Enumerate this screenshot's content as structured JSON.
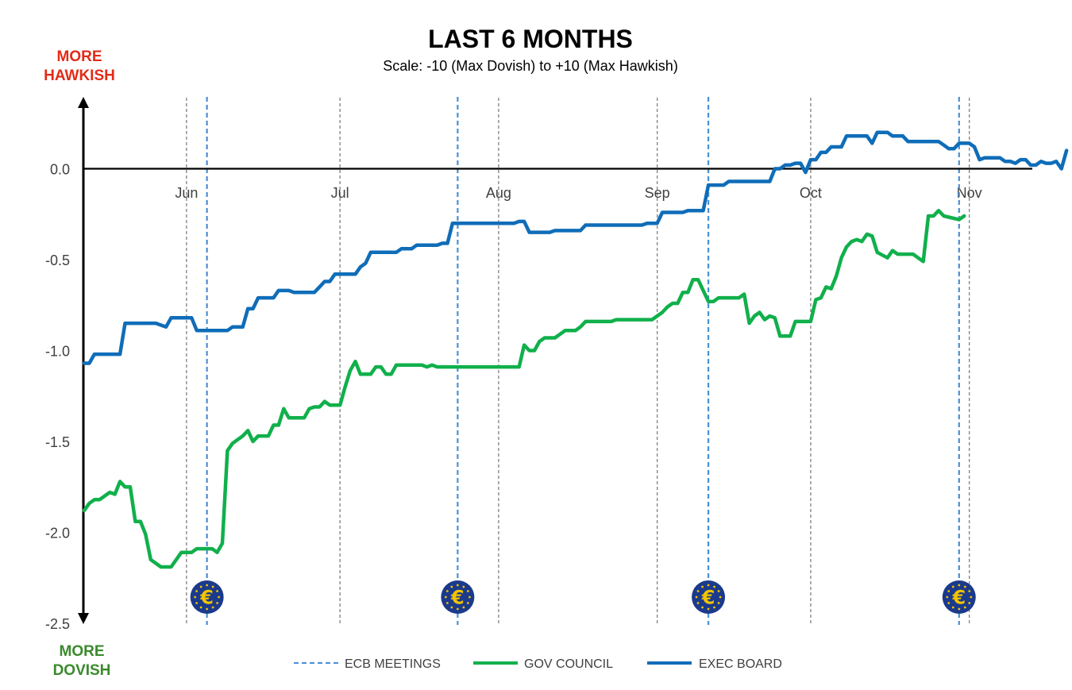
{
  "chart_data": {
    "type": "line",
    "title": "LAST 6 MONTHS",
    "subtitle": "Scale: -10 (Max Dovish)  to +10 (Max Hawkish)",
    "top_label": [
      "MORE",
      "HAWKISH"
    ],
    "bottom_label": [
      "MORE",
      "DOVISH"
    ],
    "ylim": [
      -2.5,
      0.4
    ],
    "yticks": [
      "0.0",
      "-0.5",
      "-1.0",
      "-1.5",
      "-2.0",
      "-2.5"
    ],
    "ytick_values": [
      0.0,
      -0.5,
      -1.0,
      -1.5,
      -2.0,
      -2.5
    ],
    "xlim": [
      "2025-05-12",
      "2025-11-13"
    ],
    "month_ticks": [
      {
        "label": "Jun",
        "date": "2025-06-01"
      },
      {
        "label": "Jul",
        "date": "2025-07-01"
      },
      {
        "label": "Aug",
        "date": "2025-08-01"
      },
      {
        "label": "Sep",
        "date": "2025-09-01"
      },
      {
        "label": "Oct",
        "date": "2025-10-01"
      },
      {
        "label": "Nov",
        "date": "2025-11-01"
      }
    ],
    "ecb_meetings": [
      "2025-06-05",
      "2025-07-24",
      "2025-09-11",
      "2025-10-30"
    ],
    "zero_line": true,
    "legend": "bottom-center",
    "legend_items": [
      "ECB MEETINGS",
      "GOV COUNCIL",
      "EXEC BOARD"
    ],
    "colors": {
      "exec_board": "#0F6DB8",
      "gov_council": "#10B04B",
      "ecb_meetings": "#4A8FD6",
      "month_lines": "#808080",
      "hawkish": "#E32B17",
      "dovish": "#3A8A2C",
      "euro_disc": "#1B3A8C",
      "euro_symbol": "#F2C300"
    },
    "series": [
      {
        "name": "EXEC BOARD",
        "points": [
          [
            "2025-05-12",
            -1.07
          ],
          [
            "2025-05-13",
            -1.07
          ],
          [
            "2025-05-14",
            -1.02
          ],
          [
            "2025-05-19",
            -1.02
          ],
          [
            "2025-05-20",
            -0.85
          ],
          [
            "2025-05-26",
            -0.85
          ],
          [
            "2025-05-28",
            -0.87
          ],
          [
            "2025-05-29",
            -0.82
          ],
          [
            "2025-06-02",
            -0.82
          ],
          [
            "2025-06-03",
            -0.89
          ],
          [
            "2025-06-09",
            -0.89
          ],
          [
            "2025-06-10",
            -0.87
          ],
          [
            "2025-06-12",
            -0.87
          ],
          [
            "2025-06-13",
            -0.77
          ],
          [
            "2025-06-14",
            -0.77
          ],
          [
            "2025-06-15",
            -0.71
          ],
          [
            "2025-06-18",
            -0.71
          ],
          [
            "2025-06-19",
            -0.67
          ],
          [
            "2025-06-21",
            -0.67
          ],
          [
            "2025-06-22",
            -0.68
          ],
          [
            "2025-06-26",
            -0.68
          ],
          [
            "2025-06-27",
            -0.65
          ],
          [
            "2025-06-28",
            -0.62
          ],
          [
            "2025-06-29",
            -0.62
          ],
          [
            "2025-06-30",
            -0.58
          ],
          [
            "2025-07-04",
            -0.58
          ],
          [
            "2025-07-05",
            -0.54
          ],
          [
            "2025-07-06",
            -0.52
          ],
          [
            "2025-07-07",
            -0.46
          ],
          [
            "2025-07-12",
            -0.46
          ],
          [
            "2025-07-13",
            -0.44
          ],
          [
            "2025-07-15",
            -0.44
          ],
          [
            "2025-07-16",
            -0.42
          ],
          [
            "2025-07-20",
            -0.42
          ],
          [
            "2025-07-21",
            -0.41
          ],
          [
            "2025-07-22",
            -0.41
          ],
          [
            "2025-07-23",
            -0.3
          ],
          [
            "2025-08-04",
            -0.3
          ],
          [
            "2025-08-05",
            -0.29
          ],
          [
            "2025-08-06",
            -0.29
          ],
          [
            "2025-08-07",
            -0.35
          ],
          [
            "2025-08-11",
            -0.35
          ],
          [
            "2025-08-12",
            -0.34
          ],
          [
            "2025-08-17",
            -0.34
          ],
          [
            "2025-08-18",
            -0.31
          ],
          [
            "2025-08-29",
            -0.31
          ],
          [
            "2025-08-30",
            -0.3
          ],
          [
            "2025-09-01",
            -0.3
          ],
          [
            "2025-09-02",
            -0.24
          ],
          [
            "2025-09-06",
            -0.24
          ],
          [
            "2025-09-07",
            -0.23
          ],
          [
            "2025-09-10",
            -0.23
          ],
          [
            "2025-09-11",
            -0.09
          ],
          [
            "2025-09-14",
            -0.09
          ],
          [
            "2025-09-15",
            -0.07
          ],
          [
            "2025-09-23",
            -0.07
          ],
          [
            "2025-09-24",
            0.0
          ],
          [
            "2025-09-25",
            0.0
          ],
          [
            "2025-09-26",
            0.02
          ],
          [
            "2025-09-27",
            0.02
          ],
          [
            "2025-09-28",
            0.03
          ],
          [
            "2025-09-29",
            0.03
          ],
          [
            "2025-09-30",
            -0.02
          ],
          [
            "2025-10-01",
            0.05
          ],
          [
            "2025-10-02",
            0.05
          ],
          [
            "2025-10-03",
            0.09
          ],
          [
            "2025-10-04",
            0.09
          ],
          [
            "2025-10-05",
            0.12
          ],
          [
            "2025-10-07",
            0.12
          ],
          [
            "2025-10-08",
            0.18
          ],
          [
            "2025-10-12",
            0.18
          ],
          [
            "2025-10-13",
            0.14
          ],
          [
            "2025-10-14",
            0.2
          ],
          [
            "2025-10-16",
            0.2
          ],
          [
            "2025-10-17",
            0.18
          ],
          [
            "2025-10-19",
            0.18
          ],
          [
            "2025-10-20",
            0.15
          ],
          [
            "2025-10-26",
            0.15
          ],
          [
            "2025-10-27",
            0.13
          ],
          [
            "2025-10-28",
            0.11
          ],
          [
            "2025-10-29",
            0.11
          ],
          [
            "2025-10-30",
            0.14
          ],
          [
            "2025-11-01",
            0.14
          ],
          [
            "2025-11-02",
            0.12
          ],
          [
            "2025-11-03",
            0.05
          ],
          [
            "2025-11-04",
            0.06
          ],
          [
            "2025-11-07",
            0.06
          ],
          [
            "2025-11-08",
            0.04
          ],
          [
            "2025-11-09",
            0.04
          ],
          [
            "2025-11-10",
            0.03
          ],
          [
            "2025-11-11",
            0.05
          ],
          [
            "2025-11-12",
            0.05
          ],
          [
            "2025-11-13",
            0.02
          ],
          [
            "2025-11-14",
            0.02
          ],
          [
            "2025-11-15",
            0.04
          ],
          [
            "2025-11-16",
            0.03
          ],
          [
            "2025-11-17",
            0.03
          ],
          [
            "2025-11-18",
            0.04
          ],
          [
            "2025-11-19",
            0.0
          ],
          [
            "2025-11-20",
            0.1
          ]
        ]
      },
      {
        "name": "GOV COUNCIL",
        "points": [
          [
            "2025-05-12",
            -1.88
          ],
          [
            "2025-05-13",
            -1.84
          ],
          [
            "2025-05-14",
            -1.82
          ],
          [
            "2025-05-15",
            -1.82
          ],
          [
            "2025-05-16",
            -1.8
          ],
          [
            "2025-05-17",
            -1.78
          ],
          [
            "2025-05-18",
            -1.79
          ],
          [
            "2025-05-19",
            -1.72
          ],
          [
            "2025-05-20",
            -1.75
          ],
          [
            "2025-05-21",
            -1.75
          ],
          [
            "2025-05-22",
            -1.94
          ],
          [
            "2025-05-23",
            -1.94
          ],
          [
            "2025-05-24",
            -2.01
          ],
          [
            "2025-05-25",
            -2.15
          ],
          [
            "2025-05-27",
            -2.19
          ],
          [
            "2025-05-29",
            -2.19
          ],
          [
            "2025-05-31",
            -2.11
          ],
          [
            "2025-06-02",
            -2.11
          ],
          [
            "2025-06-03",
            -2.09
          ],
          [
            "2025-06-06",
            -2.09
          ],
          [
            "2025-06-07",
            -2.11
          ],
          [
            "2025-06-08",
            -2.06
          ],
          [
            "2025-06-09",
            -1.55
          ],
          [
            "2025-06-10",
            -1.51
          ],
          [
            "2025-06-11",
            -1.49
          ],
          [
            "2025-06-12",
            -1.47
          ],
          [
            "2025-06-13",
            -1.44
          ],
          [
            "2025-06-14",
            -1.5
          ],
          [
            "2025-06-15",
            -1.47
          ],
          [
            "2025-06-17",
            -1.47
          ],
          [
            "2025-06-18",
            -1.41
          ],
          [
            "2025-06-19",
            -1.41
          ],
          [
            "2025-06-20",
            -1.32
          ],
          [
            "2025-06-21",
            -1.37
          ],
          [
            "2025-06-24",
            -1.37
          ],
          [
            "2025-06-25",
            -1.32
          ],
          [
            "2025-06-26",
            -1.31
          ],
          [
            "2025-06-27",
            -1.31
          ],
          [
            "2025-06-28",
            -1.28
          ],
          [
            "2025-06-29",
            -1.3
          ],
          [
            "2025-07-01",
            -1.3
          ],
          [
            "2025-07-02",
            -1.2
          ],
          [
            "2025-07-03",
            -1.11
          ],
          [
            "2025-07-04",
            -1.06
          ],
          [
            "2025-07-05",
            -1.13
          ],
          [
            "2025-07-07",
            -1.13
          ],
          [
            "2025-07-08",
            -1.09
          ],
          [
            "2025-07-09",
            -1.09
          ],
          [
            "2025-07-10",
            -1.13
          ],
          [
            "2025-07-11",
            -1.13
          ],
          [
            "2025-07-12",
            -1.08
          ],
          [
            "2025-07-17",
            -1.08
          ],
          [
            "2025-07-18",
            -1.09
          ],
          [
            "2025-07-19",
            -1.08
          ],
          [
            "2025-07-20",
            -1.09
          ],
          [
            "2025-08-05",
            -1.09
          ],
          [
            "2025-08-06",
            -0.97
          ],
          [
            "2025-08-07",
            -1.0
          ],
          [
            "2025-08-08",
            -1.0
          ],
          [
            "2025-08-09",
            -0.95
          ],
          [
            "2025-08-10",
            -0.93
          ],
          [
            "2025-08-12",
            -0.93
          ],
          [
            "2025-08-13",
            -0.91
          ],
          [
            "2025-08-14",
            -0.89
          ],
          [
            "2025-08-16",
            -0.89
          ],
          [
            "2025-08-17",
            -0.87
          ],
          [
            "2025-08-18",
            -0.84
          ],
          [
            "2025-08-23",
            -0.84
          ],
          [
            "2025-08-24",
            -0.83
          ],
          [
            "2025-08-31",
            -0.83
          ],
          [
            "2025-09-01",
            -0.81
          ],
          [
            "2025-09-02",
            -0.79
          ],
          [
            "2025-09-03",
            -0.76
          ],
          [
            "2025-09-04",
            -0.74
          ],
          [
            "2025-09-05",
            -0.74
          ],
          [
            "2025-09-06",
            -0.68
          ],
          [
            "2025-09-07",
            -0.68
          ],
          [
            "2025-09-08",
            -0.61
          ],
          [
            "2025-09-09",
            -0.61
          ],
          [
            "2025-09-10",
            -0.67
          ],
          [
            "2025-09-11",
            -0.73
          ],
          [
            "2025-09-12",
            -0.73
          ],
          [
            "2025-09-13",
            -0.71
          ],
          [
            "2025-09-17",
            -0.71
          ],
          [
            "2025-09-18",
            -0.69
          ],
          [
            "2025-09-19",
            -0.85
          ],
          [
            "2025-09-20",
            -0.81
          ],
          [
            "2025-09-21",
            -0.79
          ],
          [
            "2025-09-22",
            -0.83
          ],
          [
            "2025-09-23",
            -0.81
          ],
          [
            "2025-09-24",
            -0.82
          ],
          [
            "2025-09-25",
            -0.92
          ],
          [
            "2025-09-27",
            -0.92
          ],
          [
            "2025-09-28",
            -0.84
          ],
          [
            "2025-10-01",
            -0.84
          ],
          [
            "2025-10-02",
            -0.72
          ],
          [
            "2025-10-03",
            -0.71
          ],
          [
            "2025-10-04",
            -0.65
          ],
          [
            "2025-10-05",
            -0.66
          ],
          [
            "2025-10-06",
            -0.59
          ],
          [
            "2025-10-07",
            -0.49
          ],
          [
            "2025-10-08",
            -0.43
          ],
          [
            "2025-10-09",
            -0.4
          ],
          [
            "2025-10-10",
            -0.39
          ],
          [
            "2025-10-11",
            -0.4
          ],
          [
            "2025-10-12",
            -0.36
          ],
          [
            "2025-10-13",
            -0.37
          ],
          [
            "2025-10-14",
            -0.46
          ],
          [
            "2025-10-16",
            -0.49
          ],
          [
            "2025-10-17",
            -0.45
          ],
          [
            "2025-10-18",
            -0.47
          ],
          [
            "2025-10-21",
            -0.47
          ],
          [
            "2025-10-22",
            -0.49
          ],
          [
            "2025-10-23",
            -0.51
          ],
          [
            "2025-10-24",
            -0.26
          ],
          [
            "2025-10-25",
            -0.26
          ],
          [
            "2025-10-26",
            -0.23
          ],
          [
            "2025-10-27",
            -0.26
          ],
          [
            "2025-10-30",
            -0.28
          ],
          [
            "2025-10-31",
            -0.26
          ]
        ]
      }
    ]
  }
}
